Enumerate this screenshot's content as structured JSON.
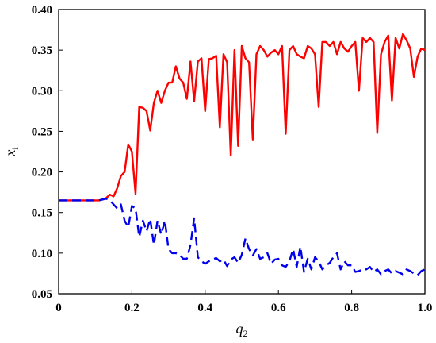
{
  "chart_data": {
    "type": "line",
    "xlabel": {
      "main": "q",
      "sub": "2"
    },
    "ylabel": {
      "main": "x",
      "sub": "i"
    },
    "xlim": [
      0,
      1.0
    ],
    "ylim": [
      0.05,
      0.4
    ],
    "xticks": [
      0,
      0.2,
      0.4,
      0.6,
      0.8,
      1.0
    ],
    "xtick_labels": [
      "0",
      "0.2",
      "0.4",
      "0.6",
      "0.8",
      "1.0"
    ],
    "yticks": [
      0.05,
      0.1,
      0.15,
      0.2,
      0.25,
      0.3,
      0.35,
      0.4
    ],
    "ytick_labels": [
      "0.05",
      "0.10",
      "0.15",
      "0.20",
      "0.25",
      "0.30",
      "0.35",
      "0.40"
    ],
    "grid": false,
    "legend": "none",
    "series": [
      {
        "color": "#ff0000",
        "style": "solid",
        "x": [
          0.0,
          0.01,
          0.02,
          0.03,
          0.04,
          0.05,
          0.06,
          0.07,
          0.08,
          0.09,
          0.1,
          0.11,
          0.12,
          0.13,
          0.14,
          0.15,
          0.16,
          0.17,
          0.18,
          0.19,
          0.2,
          0.21,
          0.22,
          0.23,
          0.24,
          0.25,
          0.26,
          0.27,
          0.28,
          0.29,
          0.3,
          0.31,
          0.32,
          0.33,
          0.34,
          0.35,
          0.36,
          0.37,
          0.38,
          0.39,
          0.4,
          0.41,
          0.42,
          0.43,
          0.44,
          0.45,
          0.46,
          0.47,
          0.48,
          0.49,
          0.5,
          0.51,
          0.52,
          0.53,
          0.54,
          0.55,
          0.56,
          0.57,
          0.58,
          0.59,
          0.6,
          0.61,
          0.62,
          0.63,
          0.64,
          0.65,
          0.66,
          0.67,
          0.68,
          0.69,
          0.7,
          0.71,
          0.72,
          0.73,
          0.74,
          0.75,
          0.76,
          0.77,
          0.78,
          0.79,
          0.8,
          0.81,
          0.82,
          0.83,
          0.84,
          0.85,
          0.86,
          0.87,
          0.88,
          0.89,
          0.9,
          0.91,
          0.92,
          0.93,
          0.94,
          0.95,
          0.96,
          0.97,
          0.98,
          0.99,
          1.0
        ],
        "values": [
          0.165,
          0.165,
          0.165,
          0.165,
          0.165,
          0.165,
          0.165,
          0.165,
          0.165,
          0.165,
          0.165,
          0.165,
          0.166,
          0.168,
          0.172,
          0.17,
          0.18,
          0.195,
          0.2,
          0.234,
          0.225,
          0.173,
          0.28,
          0.279,
          0.275,
          0.251,
          0.285,
          0.3,
          0.285,
          0.3,
          0.31,
          0.31,
          0.33,
          0.315,
          0.31,
          0.29,
          0.336,
          0.287,
          0.336,
          0.34,
          0.275,
          0.339,
          0.34,
          0.343,
          0.255,
          0.345,
          0.335,
          0.22,
          0.35,
          0.232,
          0.355,
          0.34,
          0.335,
          0.24,
          0.345,
          0.355,
          0.35,
          0.342,
          0.347,
          0.35,
          0.345,
          0.355,
          0.247,
          0.35,
          0.355,
          0.345,
          0.342,
          0.34,
          0.355,
          0.352,
          0.345,
          0.28,
          0.36,
          0.36,
          0.355,
          0.36,
          0.345,
          0.36,
          0.352,
          0.348,
          0.355,
          0.36,
          0.3,
          0.365,
          0.36,
          0.365,
          0.36,
          0.248,
          0.345,
          0.36,
          0.368,
          0.288,
          0.365,
          0.352,
          0.37,
          0.362,
          0.352,
          0.317,
          0.342,
          0.352,
          0.35
        ]
      },
      {
        "color": "#0000ee",
        "style": "dashed",
        "x": [
          0.0,
          0.01,
          0.02,
          0.03,
          0.04,
          0.05,
          0.06,
          0.07,
          0.08,
          0.09,
          0.1,
          0.11,
          0.12,
          0.13,
          0.14,
          0.15,
          0.16,
          0.17,
          0.18,
          0.19,
          0.2,
          0.21,
          0.22,
          0.23,
          0.24,
          0.25,
          0.26,
          0.27,
          0.28,
          0.29,
          0.3,
          0.31,
          0.32,
          0.33,
          0.34,
          0.35,
          0.36,
          0.37,
          0.38,
          0.39,
          0.4,
          0.41,
          0.42,
          0.43,
          0.44,
          0.45,
          0.46,
          0.47,
          0.48,
          0.49,
          0.5,
          0.51,
          0.52,
          0.53,
          0.54,
          0.55,
          0.56,
          0.57,
          0.58,
          0.59,
          0.6,
          0.61,
          0.62,
          0.63,
          0.64,
          0.65,
          0.66,
          0.67,
          0.68,
          0.69,
          0.7,
          0.71,
          0.72,
          0.73,
          0.74,
          0.75,
          0.76,
          0.77,
          0.78,
          0.79,
          0.8,
          0.81,
          0.82,
          0.83,
          0.84,
          0.85,
          0.86,
          0.87,
          0.88,
          0.89,
          0.9,
          0.91,
          0.92,
          0.93,
          0.94,
          0.95,
          0.96,
          0.97,
          0.98,
          0.99,
          1.0
        ],
        "values": [
          0.165,
          0.165,
          0.165,
          0.165,
          0.165,
          0.165,
          0.165,
          0.165,
          0.165,
          0.165,
          0.165,
          0.165,
          0.166,
          0.167,
          0.165,
          0.16,
          0.155,
          0.16,
          0.14,
          0.132,
          0.158,
          0.155,
          0.12,
          0.14,
          0.127,
          0.142,
          0.11,
          0.14,
          0.123,
          0.14,
          0.105,
          0.1,
          0.1,
          0.098,
          0.093,
          0.093,
          0.11,
          0.143,
          0.095,
          0.09,
          0.087,
          0.09,
          0.092,
          0.094,
          0.09,
          0.092,
          0.084,
          0.092,
          0.095,
          0.088,
          0.098,
          0.118,
          0.105,
          0.097,
          0.105,
          0.093,
          0.095,
          0.1,
          0.087,
          0.092,
          0.093,
          0.085,
          0.083,
          0.09,
          0.105,
          0.083,
          0.108,
          0.077,
          0.093,
          0.08,
          0.095,
          0.09,
          0.08,
          0.085,
          0.088,
          0.095,
          0.1,
          0.08,
          0.09,
          0.085,
          0.085,
          0.077,
          0.078,
          0.08,
          0.08,
          0.083,
          0.077,
          0.08,
          0.074,
          0.078,
          0.08,
          0.075,
          0.078,
          0.076,
          0.074,
          0.08,
          0.078,
          0.075,
          0.073,
          0.078,
          0.08
        ]
      }
    ]
  }
}
